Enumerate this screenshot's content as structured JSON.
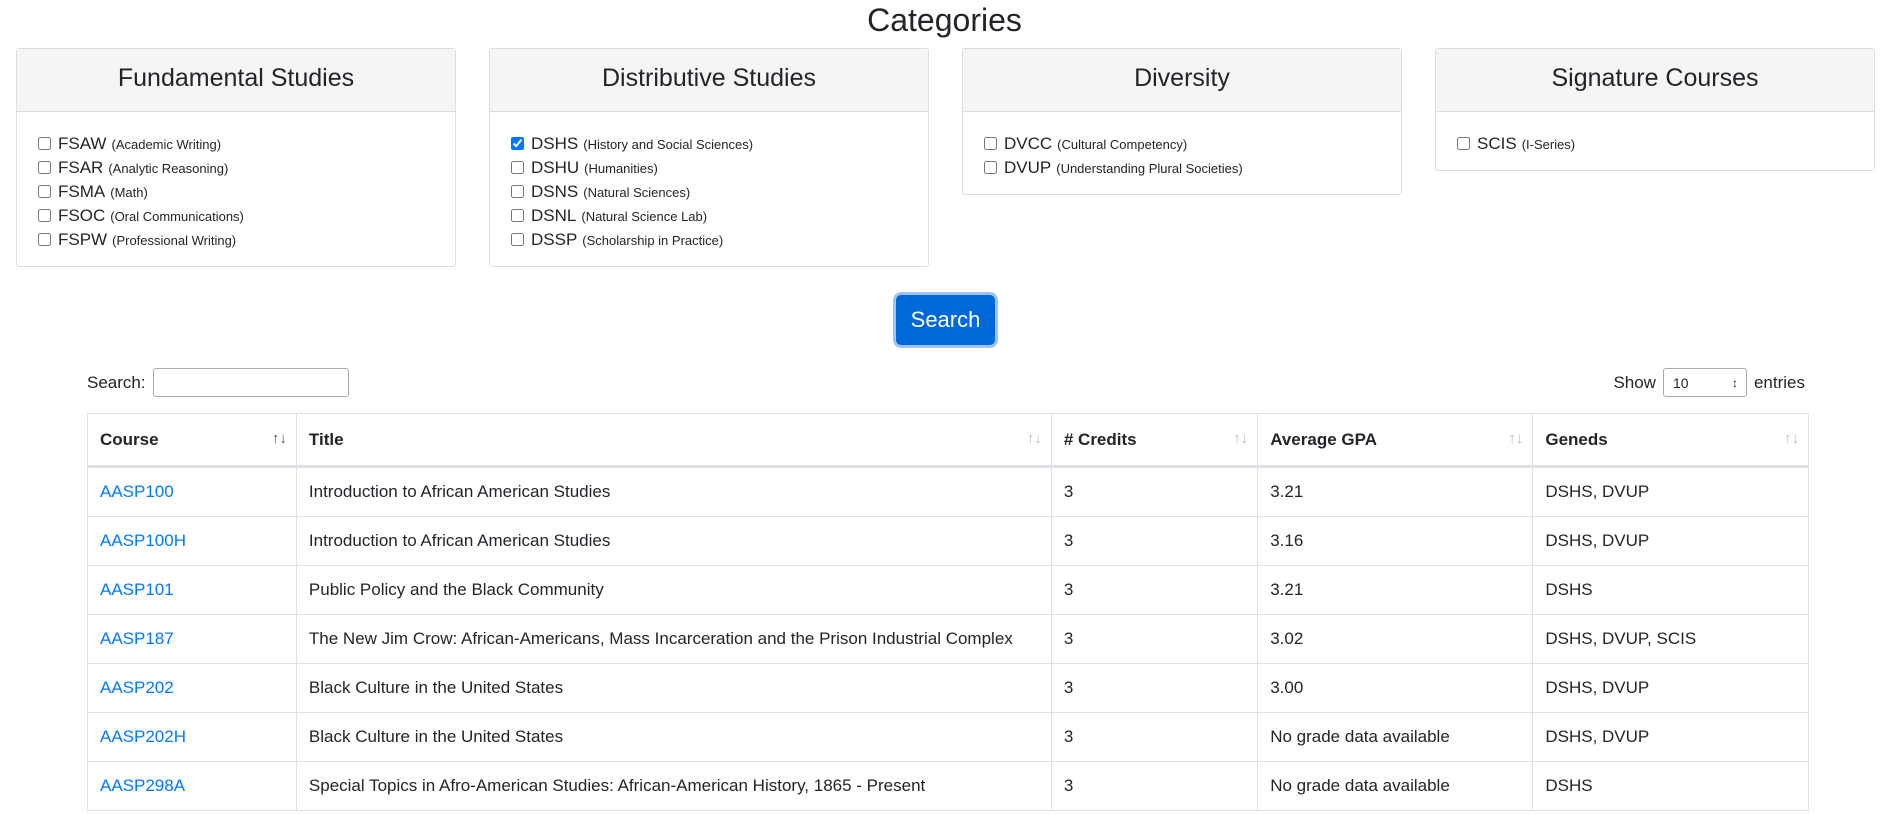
{
  "header": {
    "title": "Categories"
  },
  "panels": [
    {
      "title": "Fundamental Studies",
      "options": [
        {
          "code": "FSAW",
          "desc": "(Academic Writing)",
          "checked": false
        },
        {
          "code": "FSAR",
          "desc": "(Analytic Reasoning)",
          "checked": false
        },
        {
          "code": "FSMA",
          "desc": "(Math)",
          "checked": false
        },
        {
          "code": "FSOC",
          "desc": "(Oral Communications)",
          "checked": false
        },
        {
          "code": "FSPW",
          "desc": "(Professional Writing)",
          "checked": false
        }
      ]
    },
    {
      "title": "Distributive Studies",
      "options": [
        {
          "code": "DSHS",
          "desc": "(History and Social Sciences)",
          "checked": true
        },
        {
          "code": "DSHU",
          "desc": "(Humanities)",
          "checked": false
        },
        {
          "code": "DSNS",
          "desc": "(Natural Sciences)",
          "checked": false
        },
        {
          "code": "DSNL",
          "desc": "(Natural Science Lab)",
          "checked": false
        },
        {
          "code": "DSSP",
          "desc": "(Scholarship in Practice)",
          "checked": false
        }
      ]
    },
    {
      "title": "Diversity",
      "options": [
        {
          "code": "DVCC",
          "desc": "(Cultural Competency)",
          "checked": false
        },
        {
          "code": "DVUP",
          "desc": "(Understanding Plural Societies)",
          "checked": false
        }
      ]
    },
    {
      "title": "Signature Courses",
      "options": [
        {
          "code": "SCIS",
          "desc": "(I-Series)",
          "checked": false
        }
      ]
    }
  ],
  "search_button": "Search",
  "controls": {
    "search_label": "Search:",
    "show_label": "Show",
    "page_size": "10",
    "entries_label": "entries"
  },
  "table": {
    "headers": [
      "Course",
      "Title",
      "# Credits",
      "Average GPA",
      "Geneds"
    ],
    "rows": [
      [
        "AASP100",
        "Introduction to African American Studies",
        "3",
        "3.21",
        "DSHS, DVUP"
      ],
      [
        "AASP100H",
        "Introduction to African American Studies",
        "3",
        "3.16",
        "DSHS, DVUP"
      ],
      [
        "AASP101",
        "Public Policy and the Black Community",
        "3",
        "3.21",
        "DSHS"
      ],
      [
        "AASP187",
        "The New Jim Crow: African-Americans, Mass Incarceration and the Prison Industrial Complex",
        "3",
        "3.02",
        "DSHS, DVUP, SCIS"
      ],
      [
        "AASP202",
        "Black Culture in the United States",
        "3",
        "3.00",
        "DSHS, DVUP"
      ],
      [
        "AASP202H",
        "Black Culture in the United States",
        "3",
        "No grade data available",
        "DSHS, DVUP"
      ],
      [
        "AASP298A",
        "Special Topics in Afro-American Studies: African-American History, 1865 - Present",
        "3",
        "No grade data available",
        "DSHS"
      ]
    ]
  }
}
